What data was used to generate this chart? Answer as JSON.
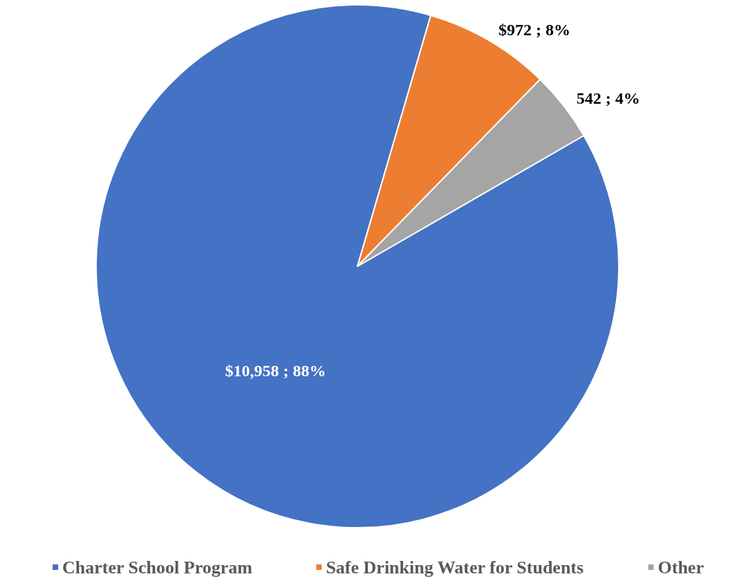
{
  "chart_data": {
    "type": "pie",
    "categories": [
      "Charter School Program",
      "Safe Drinking Water for Students",
      "Other"
    ],
    "values": [
      10958,
      972,
      542
    ],
    "colors": [
      "#4472c4",
      "#ed7d31",
      "#a5a5a5"
    ],
    "value_labels": [
      "$10,958 ; 88%",
      "$972 ; 8%",
      "542 ; 4%"
    ],
    "legend": "bottom"
  }
}
